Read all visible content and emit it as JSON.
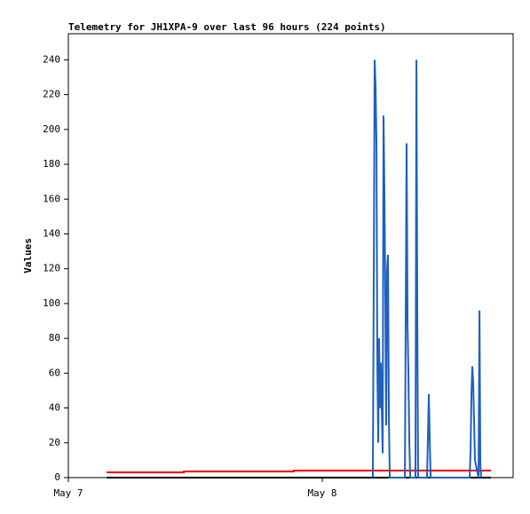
{
  "chart_data": {
    "type": "line",
    "title": "Telemetry for JH1XPA-9 over last 96 hours (224 points)",
    "y_label": "Values",
    "xlim": [
      0,
      42.04
    ],
    "xticks": [
      {
        "value": 0,
        "label": "May 7"
      },
      {
        "value": 24,
        "label": "May 8"
      }
    ],
    "ylim": [
      0,
      255
    ],
    "yticks": [
      0,
      20,
      40,
      60,
      80,
      100,
      120,
      140,
      160,
      180,
      200,
      220,
      240
    ],
    "grid": false,
    "series": [
      {
        "color": "#000000",
        "x": [
          3.61,
          39.94
        ],
        "values": [
          0,
          0
        ]
      },
      {
        "color": "#ee0000",
        "x": [
          3.61,
          10.91,
          10.91,
          21.31,
          21.31,
          39.94
        ],
        "values": [
          3,
          3,
          3.5,
          3.5,
          4,
          4
        ]
      },
      {
        "color": "#1f5fbf",
        "x": [
          28.78,
          28.87,
          28.95,
          29.04,
          29.12,
          29.21,
          29.29,
          29.37,
          29.46,
          29.54,
          29.71,
          29.79,
          29.88,
          29.96,
          30.04,
          30.13,
          30.21,
          30.3,
          30.38,
          31.81,
          31.89,
          31.97,
          32.06,
          32.14,
          32.23,
          32.31,
          32.81,
          32.9,
          32.98,
          33.06,
          33.9,
          33.99,
          34.07,
          34.15,
          34.24,
          37.93,
          38.02,
          38.1,
          38.18,
          38.27,
          38.35,
          38.43,
          38.77,
          38.86,
          38.94,
          39.02
        ],
        "values": [
          0,
          120,
          240,
          224,
          192,
          60,
          20,
          80,
          40,
          66,
          14,
          208,
          160,
          104,
          30,
          120,
          128,
          32,
          0,
          0,
          96,
          192,
          88,
          60,
          20,
          0,
          0,
          240,
          96,
          0,
          0,
          24,
          48,
          24,
          0,
          0,
          16,
          48,
          64,
          54,
          32,
          10,
          0,
          96,
          8,
          0
        ]
      }
    ]
  }
}
